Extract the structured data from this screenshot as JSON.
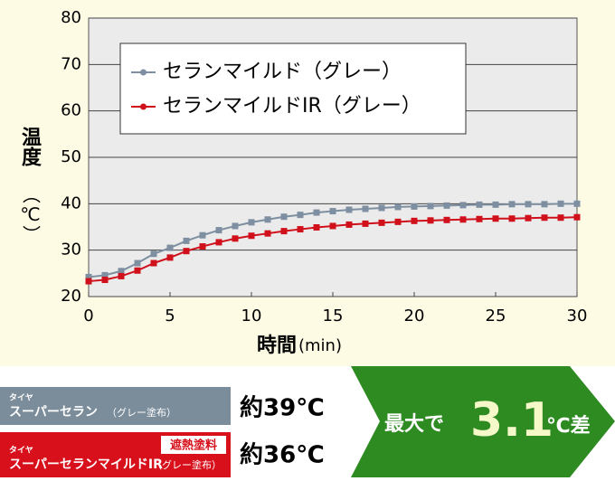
{
  "chart_data": {
    "type": "line",
    "y_label": "温度",
    "y_unit": "（℃）",
    "x_label": "時間",
    "x_unit": "(min)",
    "x": [
      0,
      1,
      2,
      3,
      4,
      5,
      6,
      7,
      8,
      9,
      10,
      11,
      12,
      13,
      14,
      15,
      16,
      17,
      18,
      19,
      20,
      21,
      22,
      23,
      24,
      25,
      26,
      27,
      28,
      29,
      30
    ],
    "series": [
      {
        "name": "セランマイルド（グレー）",
        "color": "#7d8fa0",
        "values": [
          24.2,
          24.6,
          25.5,
          27.2,
          29.2,
          30.5,
          32,
          33.2,
          34.3,
          35.2,
          36,
          36.6,
          37.2,
          37.6,
          38.1,
          38.4,
          38.7,
          38.9,
          39.1,
          39.3,
          39.4,
          39.5,
          39.6,
          39.7,
          39.8,
          39.8,
          39.9,
          39.9,
          39.9,
          40,
          40
        ]
      },
      {
        "name": "セランマイルドIR（グレー）",
        "color": "#d0101b",
        "values": [
          23.3,
          23.6,
          24.4,
          25.6,
          27.2,
          28.4,
          29.8,
          30.8,
          31.7,
          32.5,
          33.1,
          33.6,
          34.1,
          34.5,
          34.9,
          35.2,
          35.5,
          35.7,
          35.9,
          36.1,
          36.3,
          36.4,
          36.5,
          36.6,
          36.7,
          36.8,
          36.8,
          36.9,
          37,
          37,
          37.1
        ]
      }
    ],
    "xlim": [
      0,
      30
    ],
    "xticks": [
      0,
      5,
      10,
      15,
      20,
      25,
      30
    ],
    "ylim": [
      20,
      80
    ],
    "yticks": [
      20,
      30,
      40,
      50,
      60,
      70,
      80
    ],
    "grid": true,
    "legend": "upper left"
  },
  "comparison": {
    "product_a": {
      "prefix": "タイヤ",
      "name": "スーパーセラン",
      "note": "（グレー塗布）",
      "temp": "約39℃"
    },
    "product_b": {
      "badge": "遮熱塗料",
      "prefix": "タイヤ",
      "name": "スーパーセランマイルドIR",
      "note": "（グレー塗布）",
      "temp": "約36℃"
    },
    "result": {
      "lead": "最大で",
      "value": "3.1",
      "unit": "℃差"
    }
  }
}
